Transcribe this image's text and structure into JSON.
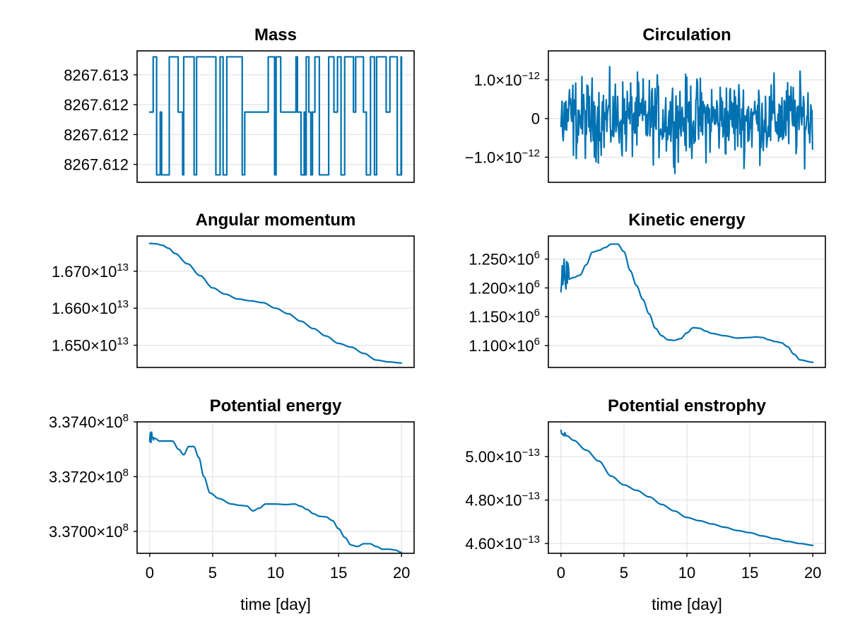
{
  "figure": {
    "series_color": "#0072b2"
  },
  "chart_data": [
    {
      "id": "mass",
      "type": "line",
      "title": "Mass",
      "xlabel": "",
      "ylabel": "",
      "xlim": [
        -1,
        21
      ],
      "ylim": [
        0,
        4.4
      ],
      "xticks": [],
      "grid_x": false,
      "yticks": [
        {
          "v": 3.6,
          "label": "8267.613"
        },
        {
          "v": 2.6,
          "label": "8267.612"
        },
        {
          "v": 1.6,
          "label": "8267.612"
        },
        {
          "v": 0.6,
          "label": "8267.612"
        }
      ],
      "pattern": "binary",
      "levels": {
        "high": 4.2,
        "mid": 2.35,
        "low": 0.25
      },
      "points": []
    },
    {
      "id": "circulation",
      "type": "line",
      "title": "Circulation",
      "xlabel": "",
      "ylabel": "",
      "xlim": [
        -1,
        21
      ],
      "ylim": [
        -1.65,
        1.75
      ],
      "xticks": [],
      "grid_x": false,
      "yticks": [
        {
          "v": 1.0,
          "mant": "1.0×10",
          "exp": "−12"
        },
        {
          "v": 0,
          "label": "0"
        },
        {
          "v": -1.0,
          "mant": "−1.0×10",
          "exp": "−12"
        }
      ],
      "pattern": "noise",
      "noise_amplitude": 1.5,
      "points": []
    },
    {
      "id": "angular",
      "type": "line",
      "title": "Angular momentum",
      "xlabel": "",
      "ylabel": "",
      "xlim": [
        -1,
        21
      ],
      "ylim": [
        1.644,
        1.6795
      ],
      "xticks": [],
      "grid_x": false,
      "yticks": [
        {
          "v": 1.67,
          "mant": "1.670×10",
          "exp": "13"
        },
        {
          "v": 1.66,
          "mant": "1.660×10",
          "exp": "13"
        },
        {
          "v": 1.65,
          "mant": "1.650×10",
          "exp": "13"
        }
      ],
      "pattern": "smooth",
      "points": [
        [
          0,
          1.6775
        ],
        [
          0.5,
          1.6774
        ],
        [
          1,
          1.677
        ],
        [
          1.5,
          1.6762
        ],
        [
          2,
          1.6748
        ],
        [
          3,
          1.672
        ],
        [
          4,
          1.6688
        ],
        [
          5,
          1.6655
        ],
        [
          6,
          1.6638
        ],
        [
          7,
          1.6625
        ],
        [
          8,
          1.662
        ],
        [
          9,
          1.6615
        ],
        [
          10,
          1.66
        ],
        [
          11,
          1.6585
        ],
        [
          12,
          1.6565
        ],
        [
          13,
          1.6545
        ],
        [
          14,
          1.6525
        ],
        [
          15,
          1.6505
        ],
        [
          16,
          1.6495
        ],
        [
          17,
          1.6478
        ],
        [
          18,
          1.646
        ],
        [
          19,
          1.6455
        ],
        [
          20,
          1.6452
        ]
      ]
    },
    {
      "id": "kinetic",
      "type": "line",
      "title": "Kinetic energy",
      "xlabel": "",
      "ylabel": "",
      "xlim": [
        -1,
        21
      ],
      "ylim": [
        1.062,
        1.29
      ],
      "xticks": [],
      "grid_x": false,
      "yticks": [
        {
          "v": 1.25,
          "mant": "1.250×10",
          "exp": "6"
        },
        {
          "v": 1.2,
          "mant": "1.200×10",
          "exp": "6"
        },
        {
          "v": 1.15,
          "mant": "1.150×10",
          "exp": "6"
        },
        {
          "v": 1.1,
          "mant": "1.100×10",
          "exp": "6"
        }
      ],
      "pattern": "smooth",
      "noisy_start": {
        "until": 0.6,
        "amplitude": 0.028
      },
      "points": [
        [
          0,
          1.214
        ],
        [
          0.3,
          1.23
        ],
        [
          0.6,
          1.215
        ],
        [
          1,
          1.218
        ],
        [
          1.5,
          1.222
        ],
        [
          2,
          1.24
        ],
        [
          2.5,
          1.262
        ],
        [
          3,
          1.265
        ],
        [
          3.5,
          1.27
        ],
        [
          4,
          1.276
        ],
        [
          4.5,
          1.276
        ],
        [
          5,
          1.263
        ],
        [
          5.5,
          1.23
        ],
        [
          6,
          1.204
        ],
        [
          6.5,
          1.18
        ],
        [
          7,
          1.155
        ],
        [
          7.5,
          1.13
        ],
        [
          8,
          1.117
        ],
        [
          8.5,
          1.11
        ],
        [
          9,
          1.109
        ],
        [
          9.5,
          1.112
        ],
        [
          10,
          1.122
        ],
        [
          10.5,
          1.131
        ],
        [
          11,
          1.13
        ],
        [
          11.5,
          1.125
        ],
        [
          12,
          1.121
        ],
        [
          13,
          1.117
        ],
        [
          14,
          1.113
        ],
        [
          15,
          1.114
        ],
        [
          15.5,
          1.115
        ],
        [
          16,
          1.114
        ],
        [
          16.5,
          1.11
        ],
        [
          17,
          1.107
        ],
        [
          17.5,
          1.105
        ],
        [
          18,
          1.098
        ],
        [
          18.5,
          1.085
        ],
        [
          19,
          1.075
        ],
        [
          20,
          1.071
        ]
      ]
    },
    {
      "id": "potential",
      "type": "line",
      "title": "Potential energy",
      "xlabel": "time [day]",
      "ylabel": "",
      "xlim": [
        -1,
        21
      ],
      "ylim": [
        3.3692,
        3.374
      ],
      "xticks": [
        0,
        5,
        10,
        15,
        20
      ],
      "grid_x": true,
      "yticks": [
        {
          "v": 3.374,
          "mant": "3.3740×10",
          "exp": "8"
        },
        {
          "v": 3.372,
          "mant": "3.3720×10",
          "exp": "8"
        },
        {
          "v": 3.37,
          "mant": "3.3700×10",
          "exp": "8"
        }
      ],
      "pattern": "smooth",
      "noisy_start": {
        "until": 0.3,
        "amplitude": 0.0003
      },
      "points": [
        [
          0,
          3.3734
        ],
        [
          0.2,
          3.3735
        ],
        [
          0.4,
          3.3734
        ],
        [
          0.8,
          3.3733
        ],
        [
          1.3,
          3.3733
        ],
        [
          1.8,
          3.3733
        ],
        [
          2.3,
          3.373
        ],
        [
          2.7,
          3.3728
        ],
        [
          3.1,
          3.3731
        ],
        [
          3.5,
          3.3731
        ],
        [
          3.9,
          3.3727
        ],
        [
          4.3,
          3.372
        ],
        [
          4.8,
          3.3714
        ],
        [
          5.5,
          3.3712
        ],
        [
          6.5,
          3.371
        ],
        [
          7.2,
          3.37095
        ],
        [
          7.7,
          3.37093
        ],
        [
          8.2,
          3.37075
        ],
        [
          8.7,
          3.37085
        ],
        [
          9.2,
          3.371
        ],
        [
          10,
          3.371
        ],
        [
          10.8,
          3.37098
        ],
        [
          11.5,
          3.371
        ],
        [
          12,
          3.37092
        ],
        [
          12.5,
          3.3708
        ],
        [
          13,
          3.37065
        ],
        [
          13.5,
          3.37055
        ],
        [
          14,
          3.37053
        ],
        [
          14.5,
          3.3704
        ],
        [
          15,
          3.3701
        ],
        [
          15.5,
          3.36978
        ],
        [
          16,
          3.3695
        ],
        [
          16.5,
          3.36945
        ],
        [
          17,
          3.36955
        ],
        [
          17.5,
          3.36955
        ],
        [
          18,
          3.36945
        ],
        [
          18.5,
          3.36935
        ],
        [
          19,
          3.36935
        ],
        [
          19.5,
          3.36932
        ],
        [
          20,
          3.36923
        ]
      ]
    },
    {
      "id": "enstrophy",
      "type": "line",
      "title": "Potential enstrophy",
      "xlabel": "time [day]",
      "ylabel": "",
      "xlim": [
        -1,
        21
      ],
      "ylim": [
        4.555,
        5.16
      ],
      "xticks": [
        0,
        5,
        10,
        15,
        20
      ],
      "grid_x": true,
      "yticks": [
        {
          "v": 5.0,
          "mant": "5.00×10",
          "exp": "−13"
        },
        {
          "v": 4.8,
          "mant": "4.80×10",
          "exp": "−13"
        },
        {
          "v": 4.6,
          "mant": "4.60×10",
          "exp": "−13"
        }
      ],
      "pattern": "smooth",
      "noisy_start": {
        "until": 0.4,
        "amplitude": 0.012
      },
      "points": [
        [
          0,
          5.115
        ],
        [
          0.5,
          5.095
        ],
        [
          1,
          5.075
        ],
        [
          2,
          5.03
        ],
        [
          3,
          4.98
        ],
        [
          4,
          4.91
        ],
        [
          5,
          4.87
        ],
        [
          6,
          4.845
        ],
        [
          7,
          4.815
        ],
        [
          8,
          4.78
        ],
        [
          9,
          4.75
        ],
        [
          10,
          4.72
        ],
        [
          11,
          4.705
        ],
        [
          12,
          4.69
        ],
        [
          13,
          4.675
        ],
        [
          14,
          4.66
        ],
        [
          15,
          4.65
        ],
        [
          16,
          4.635
        ],
        [
          17,
          4.622
        ],
        [
          18,
          4.61
        ],
        [
          19,
          4.6
        ],
        [
          20,
          4.592
        ]
      ]
    }
  ]
}
